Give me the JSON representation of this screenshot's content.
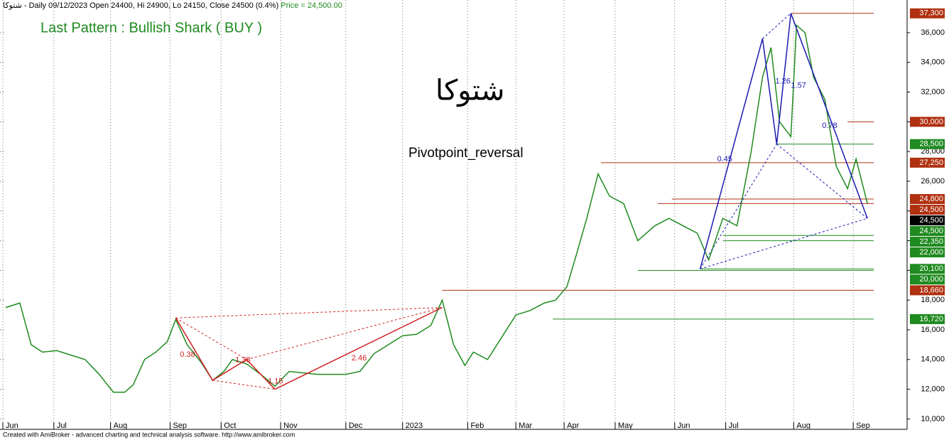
{
  "chart_data": {
    "type": "line",
    "header": "شتوکا - Daily 09/12/2023 Open 24400, Hi 24900, Lo 24150, Close 24500 (0.4%)",
    "header_price": "Price = 24,500.00",
    "title": "Last Pattern : Bullish Shark ( BUY )",
    "symbol": "شتوکا",
    "subtitle": "Pivotpoint_reversal",
    "footer": "Created with AmiBroker - advanced charting and technical analysis software. http://www.amibroker.com",
    "color": "#1f8a1f",
    "x": [
      2,
      7,
      11,
      15,
      20,
      25,
      30,
      35,
      40,
      44,
      47,
      51,
      55,
      59,
      62,
      66,
      71,
      75,
      79,
      82,
      87,
      92,
      97,
      102,
      107,
      112,
      117,
      122,
      127,
      132,
      137,
      142,
      147,
      152,
      156,
      160,
      164,
      167,
      172,
      177,
      182,
      187,
      192,
      196,
      200,
      204,
      207,
      211,
      215,
      220,
      225,
      231,
      236,
      241,
      246,
      250,
      255,
      260,
      265,
      269,
      272,
      275,
      279,
      281,
      284,
      287,
      291,
      295,
      299,
      302,
      306
    ],
    "values": [
      17500,
      17800,
      15000,
      14500,
      14600,
      14300,
      14000,
      13000,
      11800,
      11800,
      12300,
      14000,
      14500,
      15200,
      16700,
      15000,
      13800,
      12600,
      13200,
      14000,
      13700,
      13000,
      12200,
      13200,
      13100,
      13000,
      13000,
      13000,
      13200,
      14400,
      15000,
      15600,
      15700,
      16300,
      18000,
      15000,
      13600,
      14500,
      14000,
      15500,
      17000,
      17300,
      17800,
      18000,
      18900,
      21500,
      23500,
      26500,
      25000,
      24500,
      22000,
      23000,
      23500,
      23000,
      22500,
      20700,
      23500,
      23000,
      28000,
      33000,
      35000,
      30000,
      29000,
      36500,
      36000,
      33000,
      31500,
      27000,
      25500,
      27500,
      24500
    ],
    "xlim": [
      0,
      320
    ],
    "ylim": [
      9300,
      38200
    ],
    "xticks": [
      {
        "value": 1,
        "label": "Jun"
      },
      {
        "value": 19,
        "label": "Jul"
      },
      {
        "value": 39,
        "label": "Aug"
      },
      {
        "value": 60,
        "label": "Sep"
      },
      {
        "value": 78,
        "label": "Oct"
      },
      {
        "value": 99,
        "label": "Nov"
      },
      {
        "value": 122,
        "label": "Dec"
      },
      {
        "value": 142,
        "label": "2023"
      },
      {
        "value": 165,
        "label": "Feb"
      },
      {
        "value": 182,
        "label": "Mar"
      },
      {
        "value": 199,
        "label": "Apr"
      },
      {
        "value": 217,
        "label": "May"
      },
      {
        "value": 238,
        "label": "Jun"
      },
      {
        "value": 256,
        "label": "Jul"
      },
      {
        "value": 280,
        "label": "Aug"
      },
      {
        "value": 301,
        "label": "Sep"
      }
    ],
    "yticks": [
      {
        "value": 10000,
        "label": "10,000"
      },
      {
        "value": 12000,
        "label": "12,000"
      },
      {
        "value": 14000,
        "label": "14,000"
      },
      {
        "value": 16000,
        "label": "16,000"
      },
      {
        "value": 18000,
        "label": "18,000"
      },
      {
        "value": 20000,
        "label": "20,000"
      },
      {
        "value": 22000,
        "label": "22,000"
      },
      {
        "value": 24000,
        "label": "24,000"
      },
      {
        "value": 26000,
        "label": "26,000"
      },
      {
        "value": 28000,
        "label": "28,000"
      },
      {
        "value": 30000,
        "label": "30,000"
      },
      {
        "value": 32000,
        "label": "32,000"
      },
      {
        "value": 34000,
        "label": "34,000"
      },
      {
        "value": 36000,
        "label": "36,000"
      }
    ],
    "grid": true,
    "levels": [
      {
        "value": 37300,
        "label": "37,300",
        "color": "#b03010",
        "x": 279
      },
      {
        "value": 30000,
        "label": "30,000",
        "color": "#b03010",
        "x": 299
      },
      {
        "value": 28500,
        "label": "28,500",
        "color": "#1f8a1f",
        "x": 274
      },
      {
        "value": 27250,
        "label": "27,250",
        "color": "#b03010",
        "x": 212
      },
      {
        "value": 24800,
        "label": "24,800",
        "color": "#b03010",
        "x": 237
      },
      {
        "value": 24500,
        "label": "24,500",
        "color": "#b03010",
        "x": 232
      },
      {
        "value": 24500,
        "label": "24,500",
        "color": "#000000"
      },
      {
        "value": 24500,
        "label": "24,500",
        "color": "#1f8a1f"
      },
      {
        "value": 22350,
        "label": "22,350",
        "color": "#1f8a1f",
        "x": 255
      },
      {
        "value": 22000,
        "label": "22,000",
        "color": "#1f8a1f",
        "x": 255
      },
      {
        "value": 20100,
        "label": "20,100",
        "color": "#1f8a1f",
        "x": 247
      },
      {
        "value": 20000,
        "label": "20,000",
        "color": "#1f8a1f",
        "x": 225
      },
      {
        "value": 18660,
        "label": "18,660",
        "color": "#b03010",
        "x": 156
      },
      {
        "value": 16720,
        "label": "16,720",
        "color": "#1f8a1f",
        "x": 195
      }
    ],
    "patterns": [
      {
        "color": "#1a1ab0",
        "x": [
          247,
          269,
          274,
          279,
          306
        ],
        "values": [
          20100,
          35600,
          28500,
          37300,
          23500
        ],
        "ratios": [
          0.45,
          1.26,
          1.57,
          0.78
        ]
      },
      {
        "color": "#d02020",
        "x": [
          62,
          75,
          87,
          97,
          156
        ],
        "values": [
          16800,
          12600,
          14000,
          12000,
          17500
        ],
        "ratios": [
          0.38,
          1.38,
          1.15,
          2.46
        ]
      }
    ]
  }
}
